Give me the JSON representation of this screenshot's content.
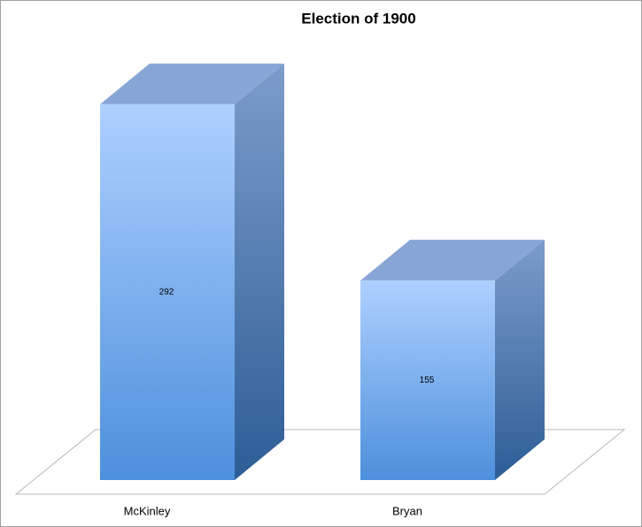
{
  "chart_data": {
    "type": "bar",
    "title": "Election of 1900",
    "categories": [
      "McKinley",
      "Bryan"
    ],
    "values": [
      292,
      155
    ]
  }
}
